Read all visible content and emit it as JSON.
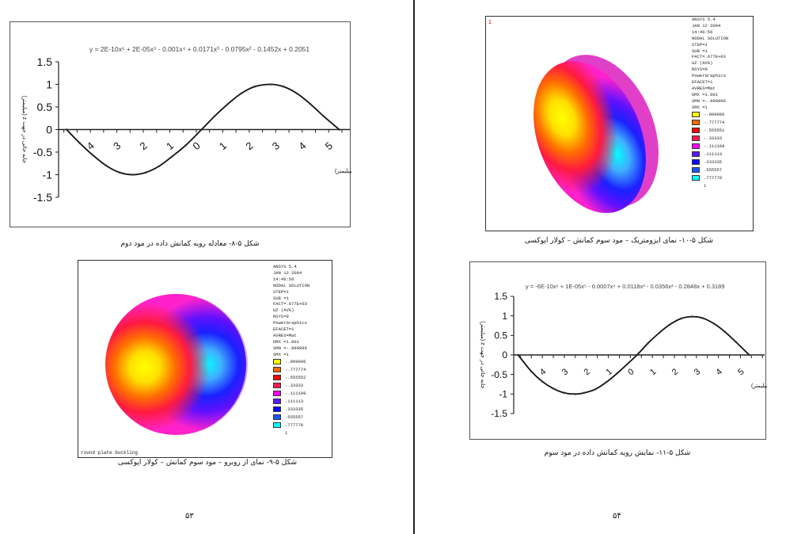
{
  "left_page": {
    "figure_8": {
      "caption": "شکل ۵-۸- معادله رویه کمانش داده در مود دوم"
    },
    "figure_9": {
      "caption": "شکل ۵-۹- نمای از روبرو – مود سوم کمانش – کولار اپوکسی",
      "footer_label": "round plate buckling",
      "info": [
        "ANSYS 5.4",
        "JAN 12 2004",
        "14:46:56",
        "NODAL SOLUTION",
        "STEP=1",
        "SUB =1",
        "FACT=.677E+03",
        "UZ       (AVG)",
        "RSYS=0",
        "PowerGraphics",
        "EFACET=1",
        "AVRES=Mat",
        "DMX =1.001",
        "SMN =-.999996",
        "SMX =1"
      ],
      "legend": [
        "-.999996",
        "-.777774",
        "-.555552",
        "-.33333",
        "-.111109",
        ".111113",
        ".333335",
        ".555557",
        ".777778",
        "1"
      ]
    },
    "page_number": "۵۳"
  },
  "right_page": {
    "figure_10": {
      "caption": "شکل ۵-۱۰- نمای ایزومتریک – مود سوم کمانش – کولار اپوکسی",
      "corner_label": "1",
      "info": [
        "ANSYS 5.4",
        "JAN 12 2004",
        "14:46:56",
        "NODAL SOLUTION",
        "STEP=1",
        "SUB =1",
        "FACT=.677E+03",
        "UZ       (AVG)",
        "RSYS=0",
        "PowerGraphics",
        "EFACET=1",
        "AVRES=Mat",
        "DMX =1.001",
        "SMN =-.999996",
        "SMX =1"
      ],
      "legend": [
        "-.999996",
        "-.777774",
        "-.555551",
        "-.33333",
        "-.111109",
        ".111113",
        ".333335",
        ".555557",
        ".777778",
        "1"
      ]
    },
    "figure_11": {
      "caption": "شکل ۵-۱۱- نمایش رویه کمانش داده در مود سوم"
    },
    "page_number": "۵۴"
  },
  "legend_colors": [
    "#ffff00",
    "#ff6a00",
    "#ff0000",
    "#ff1a55",
    "#ff00ff",
    "#5a18ff",
    "#0a0aff",
    "#1a55ff",
    "#00ffff"
  ],
  "chart_data": [
    {
      "type": "line",
      "title": "",
      "equation": "y = 2E-10x⁶ + 2E-05x⁵ - 0.001x⁴ + 0.0171x³ - 0.0795x² - 0.1452x + 0.2051",
      "xlabel": "شعاع در زوایه ۹۰ (میلیمتر)",
      "ylabel": "جابه جائی در جهت z (میلیمتر)",
      "ylim": [
        -1.5,
        1.5
      ],
      "xlim": [
        -5.2,
        5.8
      ],
      "yticks": [
        "1.5",
        "1",
        "0.5",
        "0",
        "-0.5",
        "-1",
        "-1.5"
      ],
      "ytick_values": [
        1.5,
        1,
        0.5,
        0,
        -0.5,
        -1,
        -1.5
      ],
      "xticks": [
        "4",
        "3",
        "2",
        "1",
        "0",
        "1",
        "2",
        "3",
        "4",
        "5"
      ],
      "xtick_values": [
        -4,
        -3,
        -2,
        -1,
        0,
        1,
        2,
        3,
        4,
        5
      ],
      "x": [
        -4.9,
        -4.4,
        -3.9,
        -3.4,
        -2.9,
        -2.4,
        -1.9,
        -1.4,
        -0.9,
        -0.4,
        0.2,
        0.7,
        1.2,
        1.7,
        2.2,
        2.8,
        3.3,
        3.8,
        4.3,
        4.8,
        5.4
      ],
      "y": [
        0,
        -0.3,
        -0.57,
        -0.8,
        -0.95,
        -1,
        -0.95,
        -0.81,
        -0.59,
        -0.35,
        0,
        0.3,
        0.57,
        0.8,
        0.95,
        1,
        0.95,
        0.8,
        0.57,
        0.3,
        0
      ]
    },
    {
      "type": "line",
      "title": "",
      "equation": "y = -6E-10x⁶ + 1E-05x⁵ - 0.0007x⁴ + 0.0118x³ - 0.0356x² - 0.2848x + 0.3189",
      "xlabel": "شعاع در زوایه ۰ (میلیمتر)",
      "ylabel": "جابه جائی در جهت z (میلیمتر)",
      "ylim": [
        -1.5,
        1.5
      ],
      "xlim": [
        -5.3,
        6.1
      ],
      "yticks": [
        "1.5",
        "1",
        "0.5",
        "0",
        "-0.5",
        "-1",
        "-1.5"
      ],
      "ytick_values": [
        1.5,
        1,
        0.5,
        0,
        -0.5,
        -1,
        -1.5
      ],
      "xticks": [
        "4",
        "3",
        "2",
        "1",
        "0",
        "1",
        "2",
        "3",
        "4",
        "5"
      ],
      "xtick_values": [
        -4,
        -3,
        -2,
        -1,
        0,
        1,
        2,
        3,
        4,
        5
      ],
      "x": [
        -5.1,
        -4.5,
        -4,
        -3.5,
        -3,
        -2.5,
        -2.1,
        -1.6,
        -1.1,
        -0.6,
        0.3,
        0.8,
        1.3,
        1.8,
        2.3,
        2.8,
        3.3,
        3.8,
        4.3,
        4.8,
        5.4
      ],
      "y": [
        0,
        -0.42,
        -0.68,
        -0.86,
        -0.97,
        -1,
        -0.97,
        -0.88,
        -0.7,
        -0.47,
        0,
        0.3,
        0.56,
        0.78,
        0.93,
        0.98,
        0.94,
        0.8,
        0.59,
        0.33,
        0
      ]
    }
  ]
}
